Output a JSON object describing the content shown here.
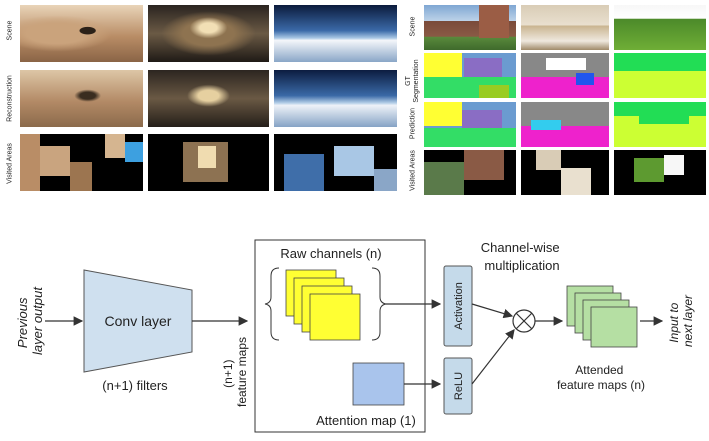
{
  "figure_top_left": {
    "row_labels": [
      "Scene",
      "Reconstruction",
      "Visited Areas"
    ]
  },
  "figure_top_right": {
    "row_labels": [
      "Scene",
      "GT Segmentation",
      "Prediction",
      "Visited Areas"
    ],
    "gt_label_line1": "GT",
    "gt_label_line2": "Segmentation"
  },
  "diagram": {
    "previous_layer_line1": "Previous",
    "previous_layer_line2": "layer output",
    "conv_layer": "Conv layer",
    "filters": "(n+1) filters",
    "feature_maps_line1": "(n+1)",
    "feature_maps_line2": "feature maps",
    "raw_channels": "Raw channels (n)",
    "attention_map": "Attention map (1)",
    "activation": "Activation",
    "relu": "ReLU",
    "channel_wise_line1": "Channel-wise",
    "channel_wise_line2": "multiplication",
    "attended_line1": "Attended",
    "attended_line2": "feature maps (n)",
    "input_next_line1": "Input to",
    "input_next_line2": "next layer"
  },
  "colors": {
    "conv_fill": "#cfe0ef",
    "raw_channel_fill": "#ffff33",
    "attention_fill": "#a9c4ec",
    "gate_fill": "#c5daea",
    "attended_fill": "#b5dfa3"
  }
}
